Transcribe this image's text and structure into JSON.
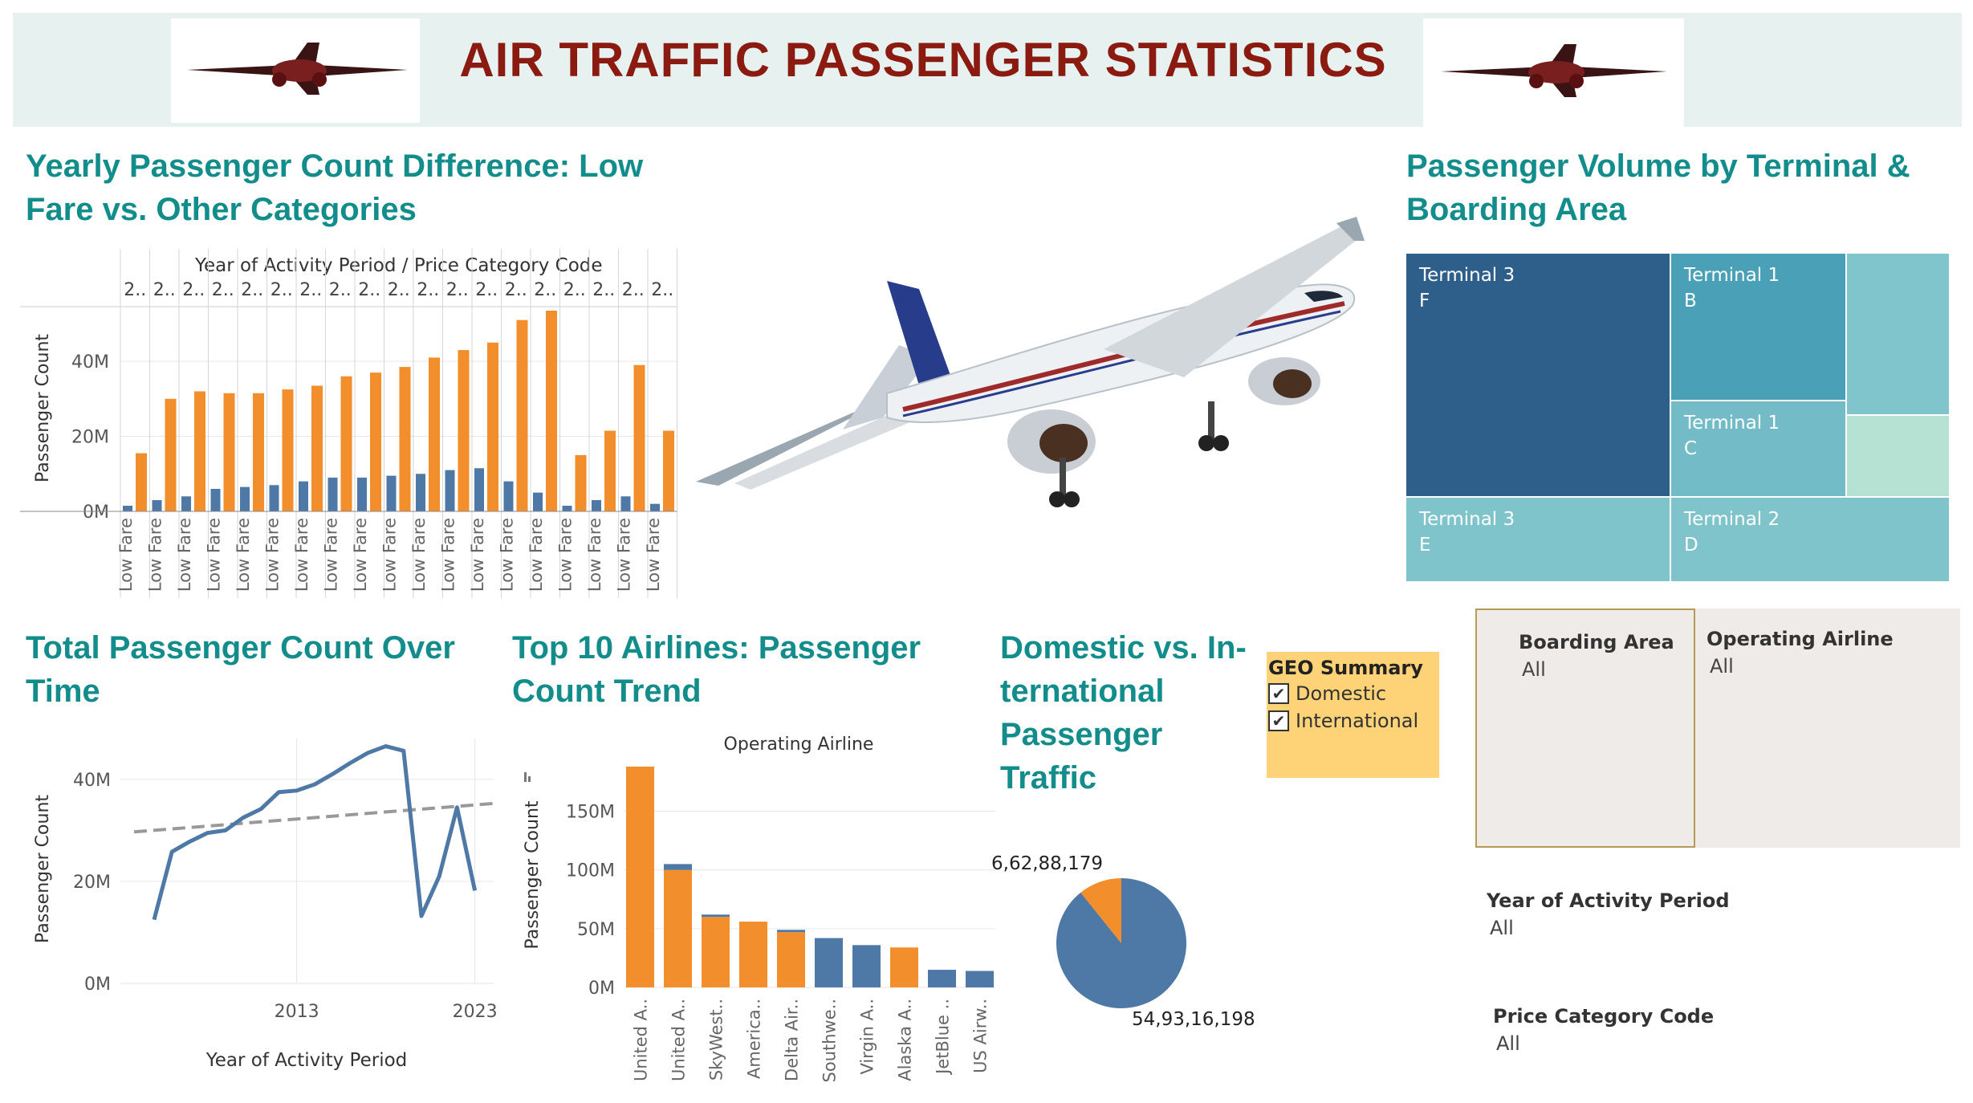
{
  "header": {
    "title": "AIR TRAFFIC PASSENGER STATISTICS"
  },
  "colors": {
    "orange": "#f28e2b",
    "blue": "#4e79a7",
    "title_teal": "#138c8c",
    "title_red": "#8b1a10"
  },
  "panels": {
    "yearly_title": "Yearly Passenger Count Difference: Low Fare vs. Other Categories",
    "terminal_title": "Passenger Volume by Terminal & Boarding Area",
    "total_title": "Total Passenger Count Over Time",
    "airlines_title": "Top 10 Airlines: Passenger Count Trend",
    "geo_title": "Domestic vs. In-ternational Passenger Traffic"
  },
  "chart_data": [
    {
      "type": "bar",
      "title": "Yearly Passenger Count Difference: Low Fare vs. Other Categories",
      "header": "Year of Activity Period / Price Category Code",
      "ylabel": "Passenger Count",
      "yticks": [
        "0M",
        "20M",
        "40M"
      ],
      "ylim": [
        0,
        55
      ],
      "column_label": "2..",
      "category_label": "Low Fare",
      "series": [
        {
          "name": "Low Fare",
          "color": "#4e79a7",
          "values": [
            1.5,
            3,
            4,
            6,
            6.5,
            7,
            8,
            9,
            9,
            9.5,
            10,
            11,
            11.5,
            8,
            5,
            1.5,
            3,
            4,
            2
          ]
        },
        {
          "name": "Other",
          "color": "#f28e2b",
          "values": [
            15.5,
            30,
            32,
            31.5,
            31.5,
            32.5,
            33.5,
            36,
            37,
            38.5,
            41,
            43,
            45,
            51,
            53.5,
            15,
            21.5,
            39,
            21.5
          ]
        }
      ]
    },
    {
      "type": "treemap",
      "title": "Passenger Volume by Terminal & Boarding Area",
      "cells": [
        {
          "terminal": "Terminal 3",
          "area": "F",
          "color": "#2e5f8a"
        },
        {
          "terminal": "Terminal 1",
          "area": "B",
          "color": "#4aa0b6"
        },
        {
          "terminal": "",
          "area": "",
          "color": "#80c4cc"
        },
        {
          "terminal": "Terminal 1",
          "area": "C",
          "color": "#73bcc7"
        },
        {
          "terminal": "",
          "area": "",
          "color": "#b6e2d4"
        },
        {
          "terminal": "Terminal 3",
          "area": "E",
          "color": "#7fc3cb"
        },
        {
          "terminal": "Terminal 2",
          "area": "D",
          "color": "#7fc3cb"
        }
      ]
    },
    {
      "type": "line",
      "title": "Total Passenger Count Over Time",
      "xlabel": "Year of Activity Period",
      "ylabel": "Passenger Count",
      "xticks": [
        "2013",
        "2023"
      ],
      "yticks": [
        "0M",
        "20M",
        "40M"
      ],
      "ylim": [
        0,
        48
      ],
      "x": [
        2005,
        2006,
        2007,
        2008,
        2009,
        2010,
        2011,
        2012,
        2013,
        2014,
        2015,
        2016,
        2017,
        2018,
        2019,
        2020,
        2021,
        2022,
        2023
      ],
      "y": [
        12.5,
        25.8,
        27.8,
        29.5,
        30,
        32.5,
        34.2,
        37.5,
        37.8,
        39,
        41,
        43.2,
        45.2,
        46.5,
        45.6,
        13.2,
        21,
        34.5,
        18.2
      ],
      "trend": [
        29.7,
        35.3
      ]
    },
    {
      "type": "bar",
      "title": "Top 10 Airlines: Passenger Count Trend",
      "header": "Operating Airline",
      "ylabel": "Passenger Count",
      "yticks": [
        "0M",
        "50M",
        "100M",
        "150M"
      ],
      "ylim": [
        0,
        190
      ],
      "categories": [
        "United A..",
        "United A..",
        "SkyWest..",
        "America..",
        "Delta Air..",
        "Southwe..",
        "Virgin A..",
        "Alaska A..",
        "JetBlue ..",
        "US Airw.."
      ],
      "series": [
        {
          "name": "Domestic",
          "color": "#f28e2b",
          "values": [
            188,
            100,
            60,
            56,
            47,
            0,
            0,
            34,
            0,
            0
          ]
        },
        {
          "name": "International",
          "color": "#4e79a7",
          "values": [
            0,
            5,
            2,
            0,
            2,
            42,
            36,
            0,
            15,
            14
          ]
        }
      ]
    },
    {
      "type": "pie",
      "title": "Domestic vs. In-ternational Passenger Traffic",
      "values": [
        549316198,
        66288179
      ],
      "labels": [
        "54,93,16,198",
        "6,62,88,179"
      ],
      "colors": [
        "#4e79a7",
        "#f28e2b"
      ]
    }
  ],
  "geo_filter": {
    "title": "GEO Summary",
    "items": [
      "Domestic",
      "International"
    ],
    "check": "✔"
  },
  "filters": {
    "boarding_area": {
      "label": "Boarding Area",
      "value": "All"
    },
    "operating_airline": {
      "label": "Operating Airline",
      "value": "All"
    },
    "year": {
      "label": "Year of Activity Period",
      "value": "All"
    },
    "price_category": {
      "label": "Price Category Code",
      "value": "All"
    }
  }
}
